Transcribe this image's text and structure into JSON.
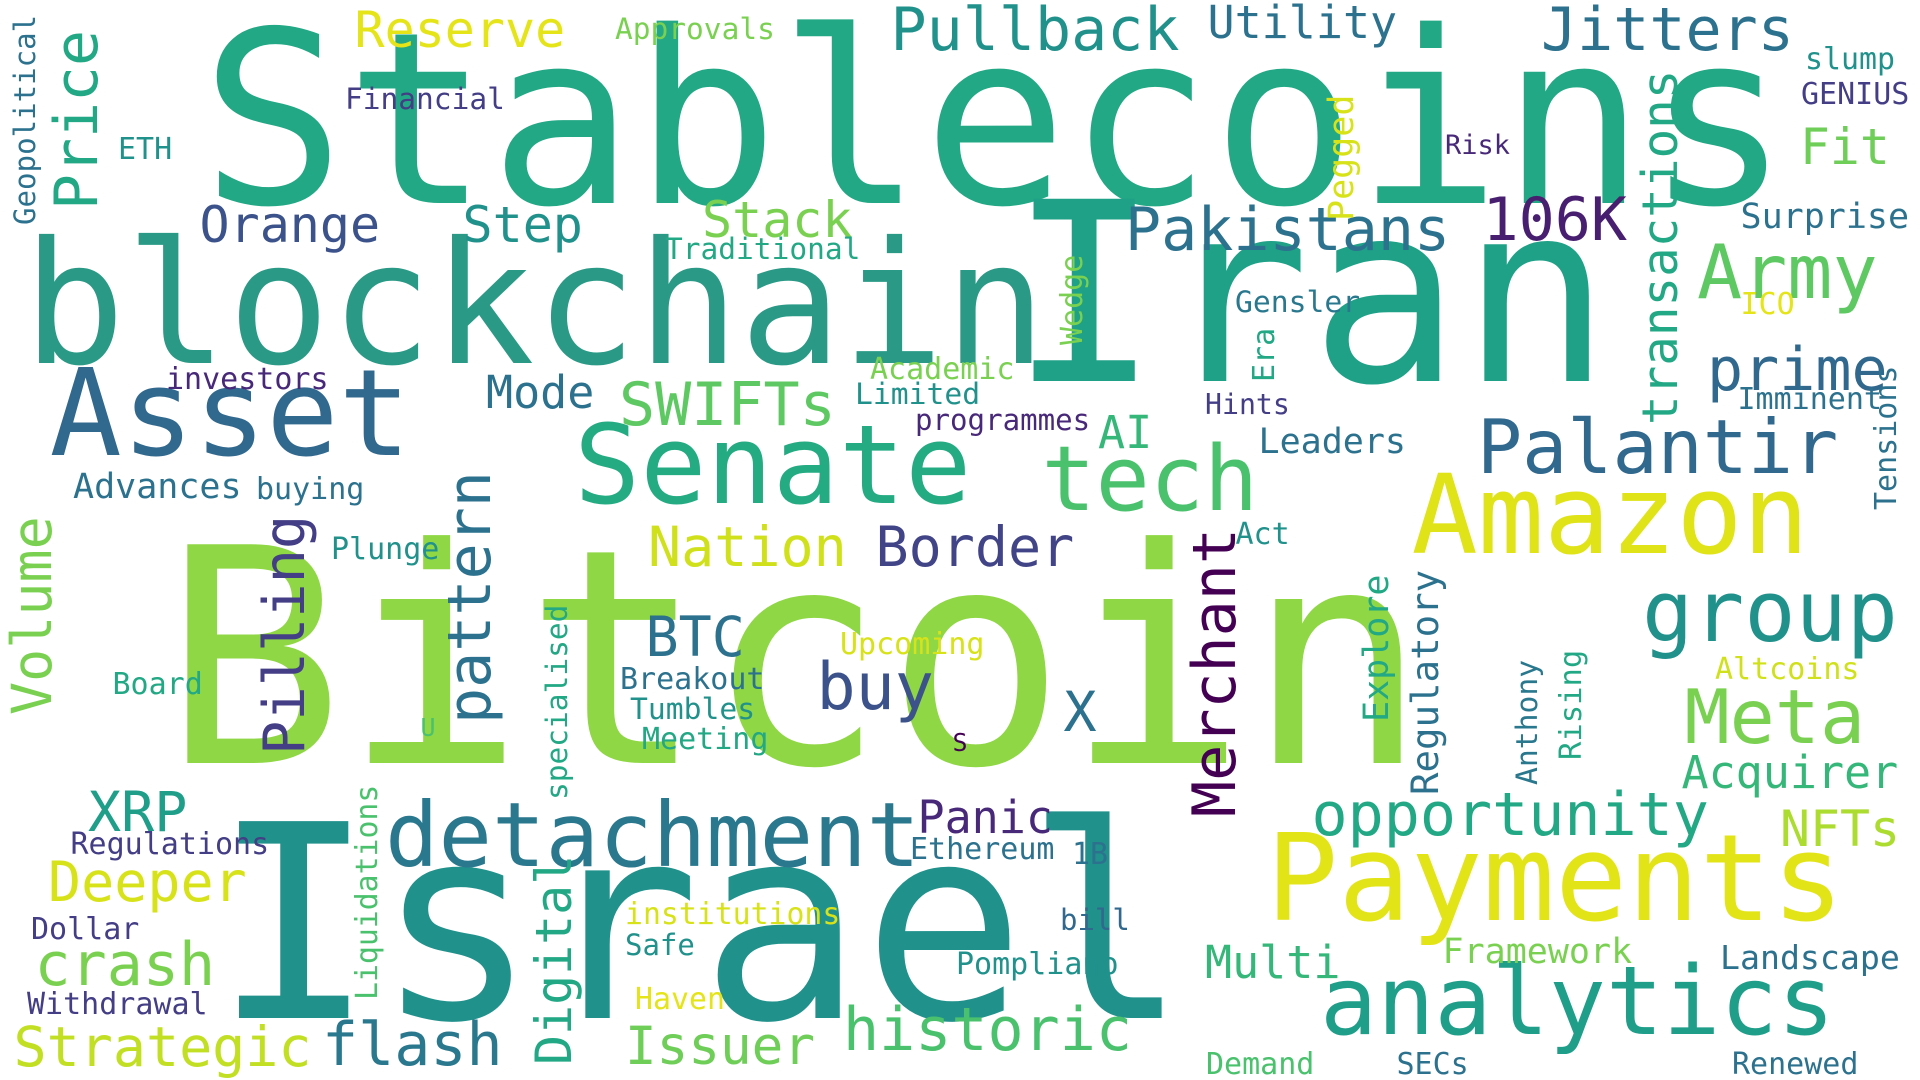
{
  "palette": {
    "background": "#ffffff",
    "yellow": "#e3e418",
    "lime": "#a0da39",
    "green": "#7ad151",
    "light_green": "#4ac16d",
    "mint": "#22a884",
    "teal": "#1fa187",
    "cyan_teal": "#21918c",
    "blue_teal": "#2a788e",
    "steel": "#31688e",
    "indigo": "#3b528b",
    "violet": "#433e85",
    "purple": "#482878",
    "deep_purple": "#440154"
  },
  "words": [
    {
      "text": "Bitcoin",
      "color": "#8fd744",
      "rotate": 0
    },
    {
      "text": "Stablecoins",
      "color": "#22a884",
      "rotate": 0
    },
    {
      "text": "Iran",
      "color": "#1fa187",
      "rotate": 0
    },
    {
      "text": "Israel",
      "color": "#21918c",
      "rotate": 0
    },
    {
      "text": "blockchain",
      "color": "#2a9a86",
      "rotate": 0
    },
    {
      "text": "Payments",
      "color": "#e3e418",
      "rotate": 0
    },
    {
      "text": "Amazon",
      "color": "#dfe318",
      "rotate": 0
    },
    {
      "text": "Senate",
      "color": "#25ab82",
      "rotate": 0
    },
    {
      "text": "Asset",
      "color": "#31688e",
      "rotate": 0
    },
    {
      "text": "analytics",
      "color": "#1f9e89",
      "rotate": 0
    },
    {
      "text": "detachment",
      "color": "#2a788e",
      "rotate": 0
    },
    {
      "text": "tech",
      "color": "#4ac16d",
      "rotate": 0
    },
    {
      "text": "Palantir",
      "color": "#31688e",
      "rotate": 0
    },
    {
      "text": "group",
      "color": "#21918c",
      "rotate": 0
    },
    {
      "text": "Meta",
      "color": "#7ad151",
      "rotate": 0
    },
    {
      "text": "opportunity",
      "color": "#22a884",
      "rotate": 0
    },
    {
      "text": "historic",
      "color": "#4ac16d",
      "rotate": 0
    },
    {
      "text": "Pakistans",
      "color": "#2c728e",
      "rotate": 0
    },
    {
      "text": "Army",
      "color": "#5ec962",
      "rotate": 0
    },
    {
      "text": "prime",
      "color": "#31688e",
      "rotate": 0
    },
    {
      "text": "Pullback",
      "color": "#21918c",
      "rotate": 0
    },
    {
      "text": "Jitters",
      "color": "#2c728e",
      "rotate": 0
    },
    {
      "text": "106K",
      "color": "#481f70",
      "rotate": 0
    },
    {
      "text": "Border",
      "color": "#414487",
      "rotate": 0
    },
    {
      "text": "Nation",
      "color": "#d0e11c",
      "rotate": 0
    },
    {
      "text": "SWIFTs",
      "color": "#5ec962",
      "rotate": 0
    },
    {
      "text": "BTC",
      "color": "#2c728e",
      "rotate": 0
    },
    {
      "text": "buy",
      "color": "#3b528b",
      "rotate": 0
    },
    {
      "text": "flash",
      "color": "#2a788e",
      "rotate": 0
    },
    {
      "text": "Issuer",
      "color": "#6ece58",
      "rotate": 0
    },
    {
      "text": "crash",
      "color": "#7ad151",
      "rotate": 0
    },
    {
      "text": "Deeper",
      "color": "#d8e219",
      "rotate": 0
    },
    {
      "text": "Strategic",
      "color": "#c2df23",
      "rotate": 0
    },
    {
      "text": "XRP",
      "color": "#1f9e89",
      "rotate": 0
    },
    {
      "text": "Acquirer",
      "color": "#35b779",
      "rotate": 0
    },
    {
      "text": "NFTs",
      "color": "#addc30",
      "rotate": 0
    },
    {
      "text": "Multi",
      "color": "#35b779",
      "rotate": 0
    },
    {
      "text": "Panic",
      "color": "#482878",
      "rotate": 0
    },
    {
      "text": "Orange",
      "color": "#3b528b",
      "rotate": 0
    },
    {
      "text": "Step",
      "color": "#21918c",
      "rotate": 0
    },
    {
      "text": "Stack",
      "color": "#7ad151",
      "rotate": 0
    },
    {
      "text": "Fit",
      "color": "#6ece58",
      "rotate": 0
    },
    {
      "text": "Reserve",
      "color": "#e5e419",
      "rotate": 0
    },
    {
      "text": "Utility",
      "color": "#2c728e",
      "rotate": 0
    },
    {
      "text": "Mode",
      "color": "#2c728e",
      "rotate": 0
    },
    {
      "text": "AI",
      "color": "#35b779",
      "rotate": 0
    },
    {
      "text": "Leaders",
      "color": "#2c728e",
      "rotate": 0
    },
    {
      "text": "Gensler",
      "color": "#2a788e",
      "rotate": 0
    },
    {
      "text": "Surprise",
      "color": "#2c728e",
      "rotate": 0
    },
    {
      "text": "GENIUS",
      "color": "#433e85",
      "rotate": 0
    },
    {
      "text": "slump",
      "color": "#21918c",
      "rotate": 0
    },
    {
      "text": "Risk",
      "color": "#482878",
      "rotate": 0
    },
    {
      "text": "Financial",
      "color": "#433e85",
      "rotate": 0
    },
    {
      "text": "ETH",
      "color": "#21918c",
      "rotate": 0
    },
    {
      "text": "Approvals",
      "color": "#7ad151",
      "rotate": 0
    },
    {
      "text": "Traditional",
      "color": "#22a884",
      "rotate": 0
    },
    {
      "text": "ICO",
      "color": "#e5e419",
      "rotate": 0
    },
    {
      "text": "Imminent",
      "color": "#2c728e",
      "rotate": 0
    },
    {
      "text": "Hints",
      "color": "#433e85",
      "rotate": 0
    },
    {
      "text": "Academic",
      "color": "#7ad151",
      "rotate": 0
    },
    {
      "text": "Limited",
      "color": "#21918c",
      "rotate": 0
    },
    {
      "text": "programmes",
      "color": "#482878",
      "rotate": 0
    },
    {
      "text": "investors",
      "color": "#482878",
      "rotate": 0
    },
    {
      "text": "Advances",
      "color": "#2c728e",
      "rotate": 0
    },
    {
      "text": "buying",
      "color": "#2c728e",
      "rotate": 0
    },
    {
      "text": "Plunge",
      "color": "#21918c",
      "rotate": 0
    },
    {
      "text": "Act",
      "color": "#21918c",
      "rotate": 0
    },
    {
      "text": "Upcoming",
      "color": "#d8e219",
      "rotate": 0
    },
    {
      "text": "Breakout",
      "color": "#2c728e",
      "rotate": 0
    },
    {
      "text": "Tumbles",
      "color": "#21918c",
      "rotate": 0
    },
    {
      "text": "Meeting",
      "color": "#22a884",
      "rotate": 0
    },
    {
      "text": "Board",
      "color": "#22a884",
      "rotate": 0
    },
    {
      "text": "U",
      "color": "#4ac16d",
      "rotate": 0
    },
    {
      "text": "S",
      "color": "#440154",
      "rotate": 0
    },
    {
      "text": "X",
      "color": "#2c728e",
      "rotate": 0
    },
    {
      "text": "Altcoins",
      "color": "#d0e11c",
      "rotate": 0
    },
    {
      "text": "Regulations",
      "color": "#433e85",
      "rotate": 0
    },
    {
      "text": "Dollar",
      "color": "#433e85",
      "rotate": 0
    },
    {
      "text": "Withdrawal",
      "color": "#433e85",
      "rotate": 0
    },
    {
      "text": "Ethereum",
      "color": "#2c728e",
      "rotate": 0
    },
    {
      "text": "1B",
      "color": "#2c728e",
      "rotate": 0
    },
    {
      "text": "bill",
      "color": "#31688e",
      "rotate": 0
    },
    {
      "text": "institutions",
      "color": "#d8e219",
      "rotate": 0
    },
    {
      "text": "Safe",
      "color": "#21918c",
      "rotate": 0
    },
    {
      "text": "Haven",
      "color": "#e5e419",
      "rotate": 0
    },
    {
      "text": "Pompliano",
      "color": "#21918c",
      "rotate": 0
    },
    {
      "text": "Framework",
      "color": "#7ad151",
      "rotate": 0
    },
    {
      "text": "Landscape",
      "color": "#2c728e",
      "rotate": 0
    },
    {
      "text": "Demand",
      "color": "#4ac16d",
      "rotate": 0
    },
    {
      "text": "SECs",
      "color": "#2c728e",
      "rotate": 0
    },
    {
      "text": "Renewed",
      "color": "#2c728e",
      "rotate": 0
    },
    {
      "text": "Price",
      "color": "#22a884",
      "rotate": -90
    },
    {
      "text": "Geopolitical",
      "color": "#2c728e",
      "rotate": -90
    },
    {
      "text": "Volume",
      "color": "#7ad151",
      "rotate": -90
    },
    {
      "text": "Pilling",
      "color": "#433e85",
      "rotate": -90
    },
    {
      "text": "pattern",
      "color": "#2c728e",
      "rotate": -90
    },
    {
      "text": "Merchant",
      "color": "#440154",
      "rotate": -90
    },
    {
      "text": "transactions",
      "color": "#22a884",
      "rotate": -90
    },
    {
      "text": "Pegged",
      "color": "#d8e219",
      "rotate": -90
    },
    {
      "text": "Wedge",
      "color": "#7ad151",
      "rotate": -90
    },
    {
      "text": "Era",
      "color": "#22a884",
      "rotate": -90
    },
    {
      "text": "Explore",
      "color": "#22a884",
      "rotate": -90
    },
    {
      "text": "Regulatory",
      "color": "#2c728e",
      "rotate": -90
    },
    {
      "text": "Anthony",
      "color": "#2a788e",
      "rotate": -90
    },
    {
      "text": "Rising",
      "color": "#22a884",
      "rotate": -90
    },
    {
      "text": "Tensions",
      "color": "#2c728e",
      "rotate": -90
    },
    {
      "text": "Digital",
      "color": "#22a884",
      "rotate": -90
    },
    {
      "text": "specialised",
      "color": "#22a884",
      "rotate": -90
    },
    {
      "text": "Liquidations",
      "color": "#4ac16d",
      "rotate": -90
    }
  ]
}
